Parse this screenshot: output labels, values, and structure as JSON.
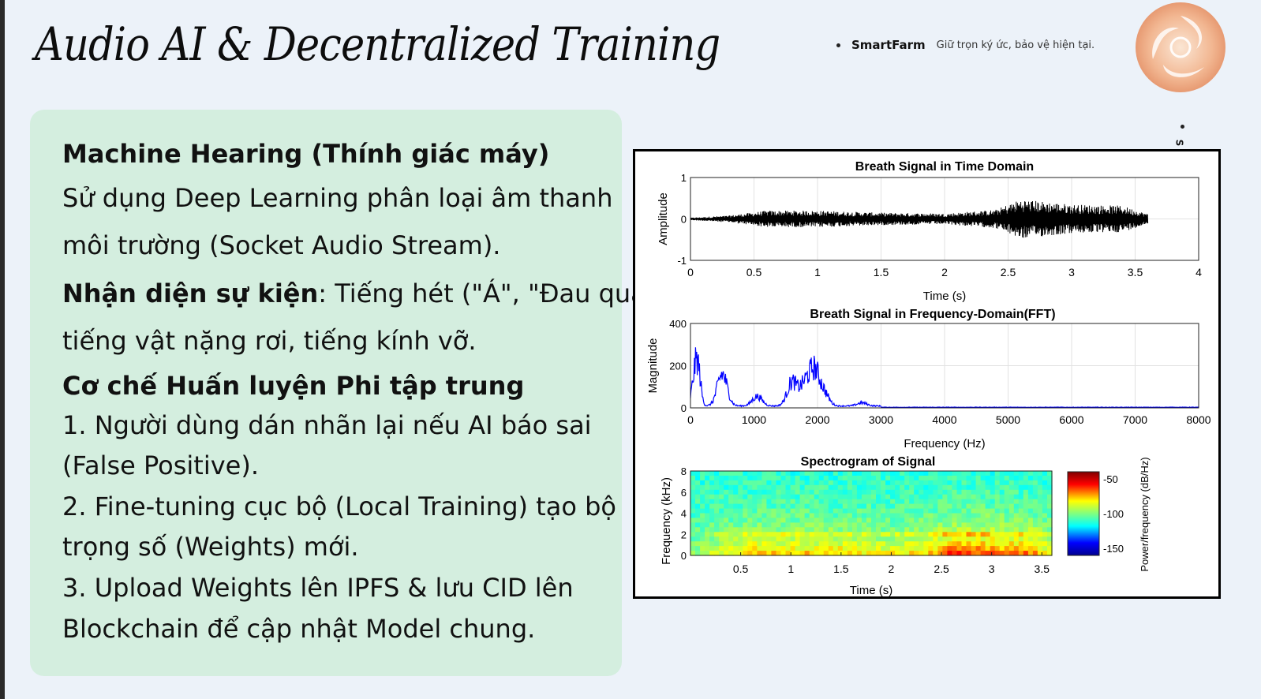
{
  "slide": {
    "title": "Audio AI & Decentralized Training",
    "brand": {
      "name": "SmartFarm",
      "tagline": "Giữ trọn ký ức, bảo vệ hiện tại."
    },
    "side_mark": "S"
  },
  "content": {
    "h1": "Machine Hearing (Thính giác máy)",
    "p1_l1": "Sử dụng Deep Learning phân loại âm thanh",
    "p1_l2": "môi trường (Socket Audio Stream).",
    "p2_bold": "Nhận diện sự kiện",
    "p2_rest": ": Tiếng hét (\"Á\", \"Đau quá\"),",
    "p2_l2": "tiếng vật nặng rơi, tiếng kính vỡ.",
    "h2": "Cơ chế Huấn luyện Phi tập trung",
    "s1_l1": "1. Người dùng dán nhãn lại nếu AI báo sai",
    "s1_l2": "(False Positive).",
    "s2_l1": "2. Fine-tuning cục bộ (Local Training) tạo bộ",
    "s2_l2": "trọng số (Weights) mới.",
    "s3_l1": "3. Upload Weights lên IPFS & lưu CID lên",
    "s3_l2": "Blockchain để cập nhật Model chung."
  },
  "chart_data": [
    {
      "type": "line",
      "title": "Breath Signal in Time Domain",
      "xlabel": "Time (s)",
      "ylabel": "Amplitude",
      "xlim": [
        0,
        4
      ],
      "ylim": [
        -1,
        1
      ],
      "xticks": [
        "0",
        "0.5",
        "1",
        "1.5",
        "2",
        "2.5",
        "3",
        "3.5",
        "4"
      ],
      "yticks": [
        "1",
        "0",
        "-1"
      ],
      "signal_end_s": 3.6,
      "envelope": {
        "t": [
          0,
          0.3,
          0.6,
          1.0,
          1.5,
          2.0,
          2.4,
          2.6,
          3.0,
          3.4,
          3.6
        ],
        "amp": [
          0.03,
          0.08,
          0.2,
          0.2,
          0.15,
          0.13,
          0.22,
          0.48,
          0.35,
          0.32,
          0.12
        ]
      },
      "color": "#000000"
    },
    {
      "type": "area",
      "title": "Breath Signal in Frequency-Domain(FFT)",
      "xlabel": "Frequency (Hz)",
      "ylabel": "Magnitude",
      "xlim": [
        0,
        8000
      ],
      "ylim": [
        0,
        400
      ],
      "xticks": [
        "0",
        "1000",
        "2000",
        "3000",
        "4000",
        "5000",
        "6000",
        "7000",
        "8000"
      ],
      "yticks": [
        "400",
        "200",
        "0"
      ],
      "peaks": {
        "hz": [
          60,
          120,
          500,
          1050,
          1600,
          1800,
          1950,
          2100,
          2700
        ],
        "mag": [
          150,
          220,
          200,
          60,
          150,
          130,
          210,
          80,
          20
        ]
      },
      "color": "#0000ff"
    },
    {
      "type": "heatmap",
      "title": "Spectrogram of Signal",
      "xlabel": "Time (s)",
      "ylabel": "Frequency (kHz)",
      "xlim": [
        0,
        3.6
      ],
      "ylim": [
        0,
        8
      ],
      "xticks": [
        "0.5",
        "1",
        "1.5",
        "2",
        "2.5",
        "3",
        "3.5"
      ],
      "yticks": [
        "8",
        "6",
        "4",
        "2",
        "0"
      ],
      "colorbar_label": "Power/frequency (dB/Hz)",
      "colorbar_ticks": [
        "-50",
        "-100",
        "-150"
      ],
      "clim": [
        -160,
        -40
      ]
    }
  ]
}
